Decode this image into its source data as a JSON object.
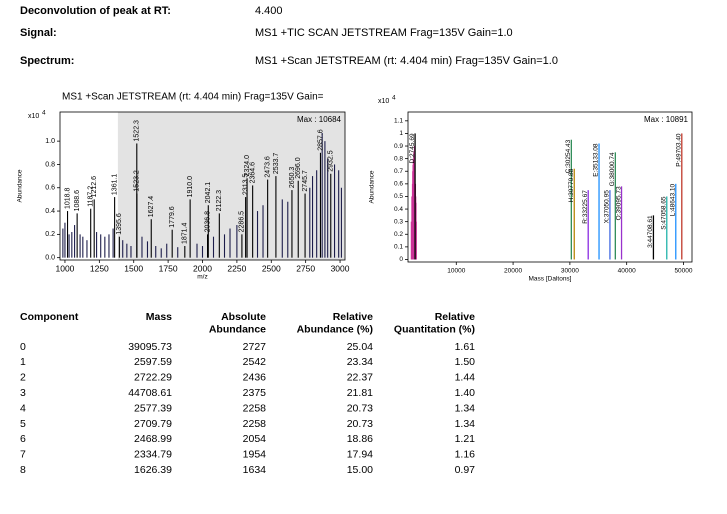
{
  "header": {
    "rt_label": "Deconvolution of peak at RT:",
    "rt_value": "4.400",
    "signal_label": "Signal:",
    "signal_value": "MS1 +TIC SCAN JETSTREAM Frag=135V Gain=1.0",
    "spectrum_label": "Spectrum:",
    "spectrum_value": "MS1 +Scan JETSTREAM (rt: 4.404 min) Frag=135V Gain=1.0"
  },
  "charts": [
    {
      "type": "stick",
      "title": "MS1 +Scan JETSTREAM (rt: 4.404 min) Frag=135V Gain=",
      "multiplier": "x10",
      "multiplier_exp": "4",
      "max_label": "Max : 10684",
      "ylabel": "Abundance",
      "xlabel": "m/z",
      "xlim": [
        964,
        3036
      ],
      "ylim": [
        -0.02,
        1.25
      ],
      "xticks": [
        1000,
        1250,
        1500,
        1750,
        2000,
        2250,
        2500,
        2750,
        3000
      ],
      "yticks": [
        {
          "value": 0,
          "label": "0.0"
        },
        0.2,
        0.4,
        0.6,
        0.8,
        {
          "value": 1,
          "label": "1.0"
        }
      ],
      "highlight_xlim": [
        1385,
        3036
      ],
      "highlight_color": "#e3e3e3",
      "series": [
        {
          "color": "#1c1c4a",
          "x": [
            985,
            1000,
            1030,
            1050,
            1070,
            1110,
            1130,
            1160,
            1230,
            1260,
            1290,
            1320,
            1350,
            1420,
            1450,
            1480,
            1560,
            1600,
            1660,
            1700,
            1740,
            1820,
            1960,
            2000,
            2080,
            2160,
            2200,
            2250,
            2400,
            2440,
            2580,
            2620,
            2780,
            2800,
            2830,
            2870,
            2890,
            2910,
            2960,
            2990,
            3010
          ],
          "values": [
            0.25,
            0.3,
            0.2,
            0.22,
            0.28,
            0.2,
            0.18,
            0.15,
            0.22,
            0.2,
            0.18,
            0.2,
            0.25,
            0.15,
            0.12,
            0.1,
            0.18,
            0.14,
            0.1,
            0.08,
            0.12,
            0.09,
            0.12,
            0.1,
            0.18,
            0.2,
            0.25,
            0.28,
            0.4,
            0.45,
            0.5,
            0.48,
            0.6,
            0.7,
            0.75,
            1.07,
            1.0,
            0.85,
            0.8,
            0.75,
            0.6
          ]
        },
        {
          "color": "#000000",
          "x": [
            1018.8,
            1088.6,
            1187.2,
            1212.6,
            1361.1,
            1395.6,
            1522.3,
            1523.2,
            1627.4,
            1779.6,
            1871.4,
            1910.0,
            2036.8,
            2042.1,
            2122.3,
            2286.5,
            2313.5,
            2324.0,
            2364.6,
            2473.6,
            2533.7,
            2650.3,
            2696.0,
            2745.7,
            2857.6,
            2932.5
          ],
          "x_labels": [
            "1018.8",
            "1088.6",
            "1187.2",
            "1212.6",
            "1361.1",
            "1395.6",
            "1522.3",
            "1523.2",
            "1627.4",
            "1779.6",
            "1871.4",
            "1910.0",
            "2036.8",
            "2042.1",
            "2122.3",
            "2286.5",
            "2313.5",
            "2324.0",
            "2364.6",
            "2473.6",
            "2533.7",
            "2650.3",
            "2696.0",
            "2745.7",
            "2857.6",
            "2932.5"
          ],
          "values": [
            0.4,
            0.38,
            0.42,
            0.5,
            0.52,
            0.18,
            0.98,
            0.55,
            0.33,
            0.24,
            0.1,
            0.5,
            0.2,
            0.45,
            0.38,
            0.2,
            0.52,
            0.68,
            0.62,
            0.67,
            0.7,
            0.58,
            0.66,
            0.55,
            0.9,
            0.72
          ]
        }
      ]
    },
    {
      "type": "stick",
      "multiplier": "x10",
      "multiplier_exp": "4",
      "max_label": "Max : 10891",
      "ylabel": "Abundance",
      "xlabel": "Mass [Daltons]",
      "xlim": [
        1500,
        51500
      ],
      "ylim": [
        -0.02,
        1.17
      ],
      "xticks": [
        10000,
        20000,
        30000,
        40000,
        50000
      ],
      "yticks": [
        0,
        0.1,
        0.2,
        0.3,
        0.4,
        0.5,
        0.6,
        0.7,
        0.8,
        0.9,
        1,
        1.1
      ],
      "series": [
        {
          "color": "#cc3399",
          "x": [
            2100,
            2200,
            2300,
            2350,
            2400,
            2450,
            2500,
            2550,
            2600,
            2650,
            2700,
            2800,
            2850,
            2900,
            2950
          ],
          "values": [
            0.3,
            0.5,
            0.6,
            0.7,
            0.75,
            0.8,
            0.65,
            0.85,
            0.7,
            0.9,
            0.8,
            0.6,
            0.5,
            0.45,
            0.3
          ]
        },
        {
          "colors": [
            "#000000",
            "#2e8b57",
            "#b8860b",
            "#8a2be2",
            "#1e90ff",
            "#4169e1",
            "#2e8b57",
            "#9932cc",
            "#000000",
            "#20b2aa",
            "#1e90ff",
            "#c0392b"
          ],
          "x": [
            2745.69,
            30254.43,
            30770.88,
            33225.67,
            35133.08,
            37050.95,
            38000.74,
            39095.73,
            44708.61,
            47058.65,
            48643.1,
            49703.4
          ],
          "x_labels": [
            "D:2745.69",
            "C:30254.43",
            "H:30770.88",
            "R:33225.67",
            "E:35133.08",
            "X:37050.95",
            "G:38000.74",
            "O:39095.73",
            "3:44708.61",
            "S:47058.65",
            "L:48643.10",
            "P:49703.40"
          ],
          "values": [
            1.0,
            0.95,
            0.72,
            0.55,
            0.92,
            0.55,
            0.85,
            0.58,
            0.35,
            0.5,
            0.6,
            1.0
          ]
        }
      ]
    }
  ],
  "table": {
    "columns": [
      [
        "Component"
      ],
      [
        "Mass"
      ],
      [
        "Absolute",
        "Abundance"
      ],
      [
        "Relative",
        "Abundance (%)"
      ],
      [
        "Relative",
        "Quantitation (%)"
      ]
    ],
    "rows": [
      [
        "0",
        "39095.73",
        "2727",
        "25.04",
        "1.61"
      ],
      [
        "1",
        "2597.59",
        "2542",
        "23.34",
        "1.50"
      ],
      [
        "2",
        "2722.29",
        "2436",
        "22.37",
        "1.44"
      ],
      [
        "3",
        "44708.61",
        "2375",
        "21.81",
        "1.40"
      ],
      [
        "4",
        "2577.39",
        "2258",
        "20.73",
        "1.34"
      ],
      [
        "5",
        "2709.79",
        "2258",
        "20.73",
        "1.34"
      ],
      [
        "6",
        "2468.99",
        "2054",
        "18.86",
        "1.21"
      ],
      [
        "7",
        "2334.79",
        "1954",
        "17.94",
        "1.16"
      ],
      [
        "8",
        "1626.39",
        "1634",
        "15.00",
        "0.97"
      ]
    ]
  }
}
